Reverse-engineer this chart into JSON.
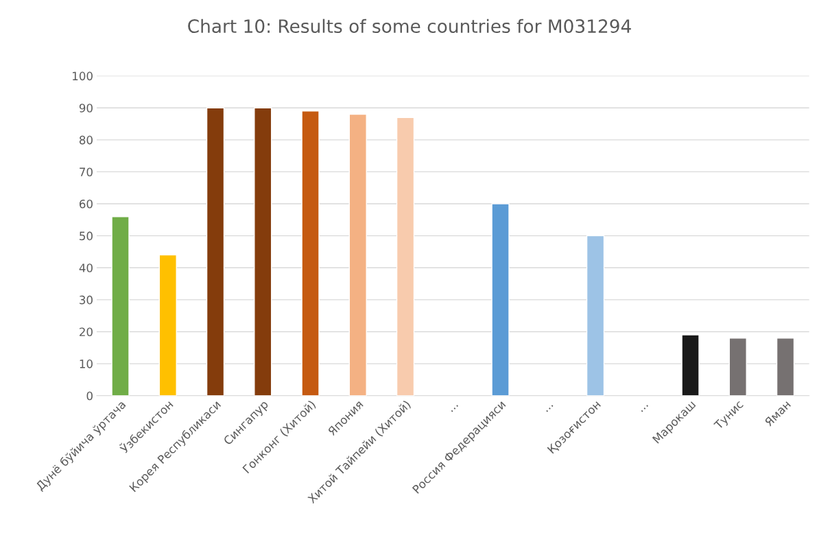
{
  "chart_data": {
    "type": "bar",
    "title": "Chart 10: Results of some countries for M031294",
    "categories": [
      "Дунё бўйича ўртача",
      "Ўзбекистон",
      "Корея Республикаси",
      "Сингапур",
      "Гонконг (Хитой)",
      "Япония",
      "Хитой Тайпейи (Хитой)",
      "...",
      "Россия Федерацияси",
      "...",
      "Қозоғистон",
      "...",
      "Марокаш",
      "Тунис",
      "Яман"
    ],
    "values": [
      56,
      44,
      90,
      90,
      89,
      88,
      87,
      null,
      60,
      null,
      50,
      null,
      19,
      18,
      18
    ],
    "colors": [
      "#70ad47",
      "#ffc000",
      "#843c0c",
      "#843c0c",
      "#c55a11",
      "#f4b183",
      "#f8cbad",
      null,
      "#5b9bd5",
      null,
      "#9dc3e6",
      null,
      "#1a1a1a",
      "#767171",
      "#767171"
    ],
    "ylim": [
      0,
      100
    ],
    "yticks": [
      0,
      10,
      20,
      30,
      40,
      50,
      60,
      70,
      80,
      90,
      100
    ],
    "grid": "y",
    "legend": false
  }
}
